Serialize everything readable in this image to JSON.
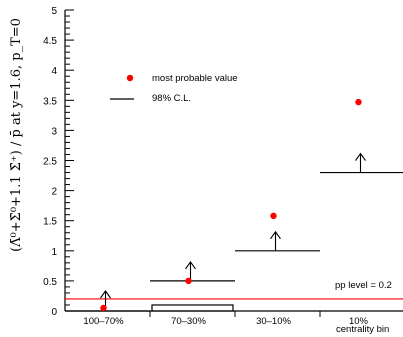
{
  "chart_data": {
    "type": "scatter",
    "ylabel": "(Λ̄⁰+Σ̄⁰+1.1 Σ̄⁺) / p̄ at y=1.6, p_T=0",
    "xlabel": "centrality bin",
    "categories": [
      "100–70%",
      "70–30%",
      "30–10%",
      "10%"
    ],
    "ylim": [
      0,
      5
    ],
    "yticks": [
      "0",
      "0.5",
      "1",
      "1.5",
      "2",
      "2.5",
      "3",
      "3.5",
      "4",
      "4.5",
      "5"
    ],
    "series": [
      {
        "name": "most probable value",
        "color": "#ff0000",
        "values": [
          0.05,
          0.5,
          1.58,
          3.47
        ]
      },
      {
        "name": "98% C.L.",
        "values": [
          0.0,
          0.5,
          1.0,
          2.3
        ],
        "arrow": "up"
      }
    ],
    "bottom_boxes": [
      0,
      0.1,
      0,
      0
    ],
    "pp_level": {
      "label": "pp level = 0.2",
      "value": 0.2,
      "color": "#ff0000"
    },
    "legend_position": "top-left"
  }
}
